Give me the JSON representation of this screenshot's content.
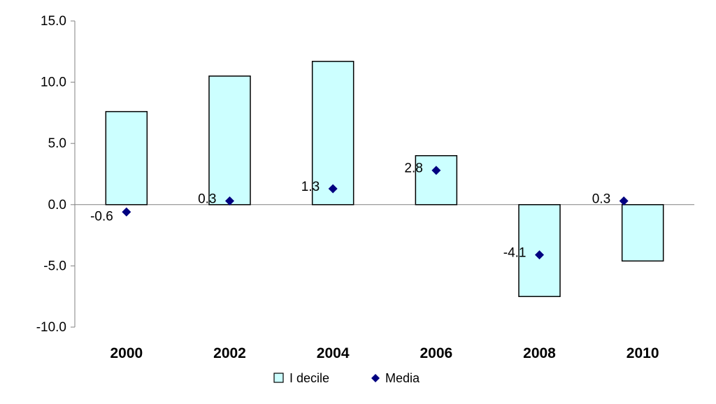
{
  "chart_data": {
    "type": "bar",
    "title": "",
    "xlabel": "",
    "ylabel": "",
    "categories": [
      "2000",
      "2002",
      "2004",
      "2006",
      "2008",
      "2010"
    ],
    "ylim": [
      -10,
      15
    ],
    "y_ticks": [
      15,
      10,
      5,
      0,
      -5,
      -10
    ],
    "y_tick_labels": [
      "15.0",
      "10.0",
      "5.0",
      "0.0",
      "-5.0",
      "-10.0"
    ],
    "grid": false,
    "legend_position": "bottom",
    "series": [
      {
        "name": "I decile",
        "type": "bar",
        "values": [
          7.6,
          10.5,
          11.7,
          4.0,
          -7.5,
          -4.6
        ],
        "fill_color": "#ccffff",
        "stroke_color": "#000000"
      },
      {
        "name": "Media",
        "type": "scatter",
        "marker": "diamond",
        "values": [
          -0.6,
          0.3,
          1.3,
          2.8,
          -4.1,
          0.3
        ],
        "data_labels": [
          "-0.6",
          "0.3",
          "1.3",
          "2.8",
          "-4.1",
          "0.3"
        ],
        "color": "#000080"
      }
    ]
  }
}
